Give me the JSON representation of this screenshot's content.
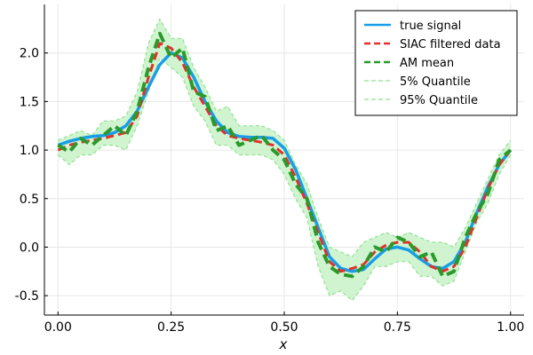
{
  "chart_data": {
    "type": "line",
    "xlabel": "x",
    "ylabel": "",
    "xlim": [
      -0.03,
      1.03
    ],
    "ylim": [
      -0.7,
      2.5
    ],
    "xticks": [
      0.0,
      0.25,
      0.5,
      0.75,
      1.0
    ],
    "xtick_labels": [
      "0.00",
      "0.25",
      "0.50",
      "0.75",
      "1.00"
    ],
    "yticks": [
      -0.5,
      0.0,
      0.5,
      1.0,
      1.5,
      2.0
    ],
    "ytick_labels": [
      "-0.5",
      "0.0",
      "0.5",
      "1.0",
      "1.5",
      "2.0"
    ],
    "grid": true,
    "legend_position": "top-right",
    "colors": {
      "true_signal": "#179ee6",
      "siac": "#e2302c",
      "am_mean": "#2a9a2a",
      "quantile": "#8fe38f",
      "band_fill": "#c8f2c8"
    },
    "x": [
      0.0,
      0.025,
      0.05,
      0.075,
      0.1,
      0.125,
      0.15,
      0.175,
      0.2,
      0.225,
      0.25,
      0.275,
      0.3,
      0.325,
      0.35,
      0.375,
      0.4,
      0.425,
      0.45,
      0.475,
      0.5,
      0.525,
      0.55,
      0.575,
      0.6,
      0.625,
      0.65,
      0.675,
      0.7,
      0.725,
      0.75,
      0.775,
      0.8,
      0.825,
      0.85,
      0.875,
      0.9,
      0.925,
      0.95,
      0.975,
      1.0
    ],
    "series": [
      {
        "name": "true signal",
        "style": "solid",
        "values": [
          1.05,
          1.09,
          1.12,
          1.14,
          1.15,
          1.18,
          1.25,
          1.4,
          1.65,
          1.88,
          2.0,
          1.95,
          1.75,
          1.5,
          1.3,
          1.18,
          1.14,
          1.13,
          1.13,
          1.12,
          1.02,
          0.8,
          0.5,
          0.2,
          -0.1,
          -0.22,
          -0.25,
          -0.23,
          -0.12,
          -0.02,
          0.0,
          -0.03,
          -0.12,
          -0.2,
          -0.22,
          -0.15,
          0.05,
          0.35,
          0.62,
          0.85,
          1.0
        ]
      },
      {
        "name": "SIAC filtered data",
        "style": "dashed",
        "values": [
          1.0,
          1.05,
          1.08,
          1.1,
          1.12,
          1.15,
          1.18,
          1.35,
          1.75,
          2.1,
          2.05,
          1.9,
          1.65,
          1.45,
          1.25,
          1.15,
          1.12,
          1.1,
          1.08,
          1.05,
          0.95,
          0.72,
          0.45,
          0.15,
          -0.15,
          -0.25,
          -0.22,
          -0.18,
          -0.05,
          0.02,
          0.05,
          0.05,
          -0.05,
          -0.2,
          -0.25,
          -0.2,
          0.0,
          0.3,
          0.6,
          0.85,
          1.0
        ]
      },
      {
        "name": "AM mean",
        "style": "dashed",
        "values": [
          1.05,
          0.98,
          1.12,
          1.05,
          1.15,
          1.25,
          1.15,
          1.4,
          1.85,
          2.2,
          1.95,
          2.05,
          1.6,
          1.55,
          1.2,
          1.25,
          1.05,
          1.1,
          1.15,
          1.0,
          0.9,
          0.65,
          0.5,
          0.05,
          -0.2,
          -0.28,
          -0.3,
          -0.2,
          0.0,
          -0.05,
          0.1,
          0.05,
          -0.1,
          -0.05,
          -0.3,
          -0.25,
          0.1,
          0.35,
          0.55,
          0.9,
          1.0
        ]
      },
      {
        "name": "5% Quantile",
        "style": "dashed",
        "values": [
          0.95,
          0.85,
          0.95,
          0.95,
          1.05,
          1.05,
          1.0,
          1.25,
          1.6,
          1.95,
          1.85,
          1.75,
          1.45,
          1.3,
          1.05,
          1.05,
          0.95,
          0.95,
          0.95,
          0.9,
          0.75,
          0.5,
          0.3,
          -0.2,
          -0.5,
          -0.45,
          -0.55,
          -0.4,
          -0.2,
          -0.2,
          -0.15,
          -0.15,
          -0.3,
          -0.3,
          -0.4,
          -0.35,
          -0.05,
          0.25,
          0.45,
          0.75,
          0.95
        ]
      },
      {
        "name": "95% Quantile",
        "style": "dashed",
        "values": [
          1.1,
          1.15,
          1.2,
          1.15,
          1.3,
          1.3,
          1.35,
          1.6,
          2.1,
          2.35,
          2.15,
          2.15,
          1.85,
          1.65,
          1.4,
          1.45,
          1.25,
          1.25,
          1.25,
          1.2,
          1.1,
          0.85,
          0.65,
          0.3,
          0.0,
          -0.05,
          -0.1,
          0.05,
          0.1,
          0.15,
          0.1,
          0.15,
          0.1,
          0.05,
          0.05,
          0.0,
          0.2,
          0.45,
          0.7,
          0.95,
          1.1
        ]
      }
    ]
  }
}
